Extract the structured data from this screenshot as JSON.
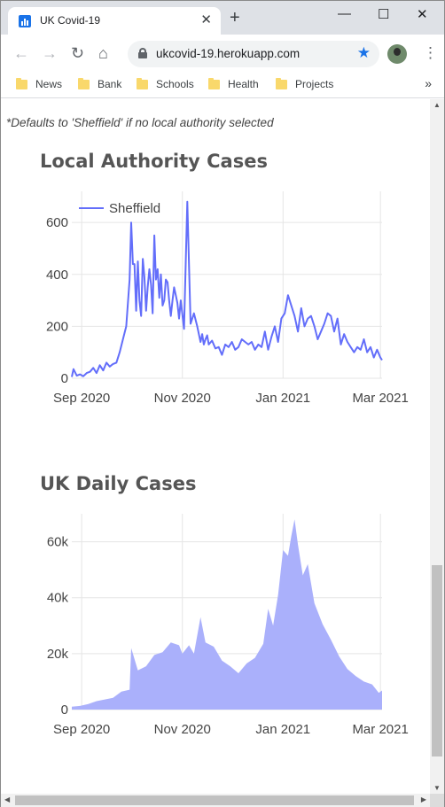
{
  "browser": {
    "tab_title": "UK Covid-19",
    "tab_close": "✕",
    "new_tab": "+",
    "win_minimize": "—",
    "win_maximize": "☐",
    "win_close": "✕",
    "url": "ukcovid-19.herokuapp.com",
    "icons": [
      "back-arrow-icon",
      "forward-arrow-icon",
      "reload-icon",
      "home-icon",
      "lock-icon",
      "star-icon",
      "menu-dots-icon"
    ],
    "bookmarks": [
      "News",
      "Bank",
      "Schools",
      "Health",
      "Projects"
    ],
    "bookmarks_more": "»"
  },
  "page": {
    "note": "*Defaults to 'Sheffield' if no local authority selected",
    "local_title": "Local Authority Cases",
    "uk_title": "UK Daily Cases"
  },
  "colors": {
    "line": "#636efa",
    "area": "#aab0fb",
    "grid": "#e5e5e5"
  },
  "chart_data": [
    {
      "type": "line",
      "title": "Local Authority Cases",
      "xlabel": "",
      "ylabel": "",
      "ylim": [
        0,
        720
      ],
      "yticks": [
        0,
        200,
        400,
        600
      ],
      "ytick_labels": [
        "0",
        "200",
        "400",
        "600"
      ],
      "xticks": [
        "2020-09-01",
        "2020-11-01",
        "2021-01-01",
        "2021-03-01"
      ],
      "xtick_labels": [
        "Sep 2020",
        "Nov 2020",
        "Jan 2021",
        "Mar 2021"
      ],
      "xlim": [
        "2020-08-26",
        "2021-03-02"
      ],
      "legend": "top-left",
      "grid": true,
      "series": [
        {
          "name": "Sheffield",
          "x": [
            "2020-08-26",
            "2020-08-27",
            "2020-08-29",
            "2020-08-31",
            "2020-09-02",
            "2020-09-04",
            "2020-09-06",
            "2020-09-08",
            "2020-09-10",
            "2020-09-12",
            "2020-09-14",
            "2020-09-16",
            "2020-09-18",
            "2020-09-20",
            "2020-09-22",
            "2020-09-24",
            "2020-09-26",
            "2020-09-28",
            "2020-09-30",
            "2020-10-01",
            "2020-10-02",
            "2020-10-03",
            "2020-10-04",
            "2020-10-05",
            "2020-10-06",
            "2020-10-07",
            "2020-10-08",
            "2020-10-09",
            "2020-10-10",
            "2020-10-11",
            "2020-10-12",
            "2020-10-13",
            "2020-10-14",
            "2020-10-15",
            "2020-10-16",
            "2020-10-17",
            "2020-10-18",
            "2020-10-19",
            "2020-10-20",
            "2020-10-21",
            "2020-10-22",
            "2020-10-23",
            "2020-10-24",
            "2020-10-25",
            "2020-10-26",
            "2020-10-27",
            "2020-10-28",
            "2020-10-29",
            "2020-10-30",
            "2020-10-31",
            "2020-11-02",
            "2020-11-04",
            "2020-11-06",
            "2020-11-08",
            "2020-11-10",
            "2020-11-12",
            "2020-11-13",
            "2020-11-14",
            "2020-11-15",
            "2020-11-16",
            "2020-11-17",
            "2020-11-19",
            "2020-11-21",
            "2020-11-23",
            "2020-11-25",
            "2020-11-27",
            "2020-11-29",
            "2020-12-01",
            "2020-12-03",
            "2020-12-05",
            "2020-12-07",
            "2020-12-09",
            "2020-12-11",
            "2020-12-13",
            "2020-12-15",
            "2020-12-17",
            "2020-12-19",
            "2020-12-21",
            "2020-12-23",
            "2020-12-25",
            "2020-12-27",
            "2020-12-29",
            "2020-12-31",
            "2021-01-02",
            "2021-01-04",
            "2021-01-06",
            "2021-01-08",
            "2021-01-10",
            "2021-01-12",
            "2021-01-14",
            "2021-01-16",
            "2021-01-18",
            "2021-01-20",
            "2021-01-22",
            "2021-01-24",
            "2021-01-26",
            "2021-01-28",
            "2021-01-30",
            "2021-02-01",
            "2021-02-03",
            "2021-02-05",
            "2021-02-07",
            "2021-02-09",
            "2021-02-11",
            "2021-02-13",
            "2021-02-15",
            "2021-02-17",
            "2021-02-19",
            "2021-02-21",
            "2021-02-23",
            "2021-02-25",
            "2021-02-27",
            "2021-03-01",
            "2021-03-02"
          ],
          "y": [
            5,
            35,
            10,
            15,
            8,
            20,
            25,
            40,
            20,
            50,
            30,
            60,
            45,
            55,
            60,
            100,
            150,
            200,
            380,
            600,
            440,
            440,
            260,
            450,
            300,
            240,
            460,
            390,
            260,
            350,
            420,
            360,
            250,
            550,
            380,
            420,
            310,
            400,
            280,
            300,
            380,
            370,
            300,
            240,
            300,
            350,
            320,
            290,
            230,
            300,
            190,
            680,
            210,
            250,
            200,
            140,
            170,
            130,
            150,
            165,
            130,
            145,
            115,
            120,
            90,
            130,
            120,
            140,
            110,
            120,
            150,
            140,
            130,
            140,
            110,
            130,
            120,
            180,
            110,
            160,
            200,
            140,
            230,
            250,
            320,
            280,
            240,
            180,
            270,
            200,
            230,
            240,
            200,
            150,
            180,
            210,
            250,
            240,
            180,
            230,
            130,
            170,
            140,
            120,
            100,
            120,
            110,
            150,
            100,
            120,
            80,
            110,
            80,
            70
          ]
        }
      ]
    },
    {
      "type": "area",
      "title": "UK Daily Cases",
      "xlabel": "",
      "ylabel": "",
      "ylim": [
        0,
        70000
      ],
      "yticks": [
        0,
        20000,
        40000,
        60000
      ],
      "ytick_labels": [
        "0",
        "20k",
        "40k",
        "60k"
      ],
      "xticks": [
        "2020-09-01",
        "2020-11-01",
        "2021-01-01",
        "2021-03-01"
      ],
      "xtick_labels": [
        "Sep 2020",
        "Nov 2020",
        "Jan 2021",
        "Mar 2021"
      ],
      "xlim": [
        "2020-08-26",
        "2021-03-02"
      ],
      "grid": true,
      "series": [
        {
          "x": [
            "2020-08-26",
            "2020-08-31",
            "2020-09-05",
            "2020-09-10",
            "2020-09-15",
            "2020-09-20",
            "2020-09-25",
            "2020-09-30",
            "2020-10-01",
            "2020-10-05",
            "2020-10-10",
            "2020-10-15",
            "2020-10-20",
            "2020-10-25",
            "2020-10-30",
            "2020-11-01",
            "2020-11-05",
            "2020-11-08",
            "2020-11-12",
            "2020-11-15",
            "2020-11-20",
            "2020-11-25",
            "2020-11-30",
            "2020-12-05",
            "2020-12-10",
            "2020-12-15",
            "2020-12-20",
            "2020-12-23",
            "2020-12-26",
            "2020-12-29",
            "2021-01-01",
            "2021-01-04",
            "2021-01-06",
            "2021-01-08",
            "2021-01-10",
            "2021-01-13",
            "2021-01-16",
            "2021-01-20",
            "2021-01-25",
            "2021-01-30",
            "2021-02-04",
            "2021-02-09",
            "2021-02-14",
            "2021-02-19",
            "2021-02-24",
            "2021-02-28",
            "2021-03-02"
          ],
          "y": [
            1000,
            1300,
            2000,
            3000,
            3600,
            4200,
            6400,
            7100,
            22000,
            14000,
            15500,
            19500,
            20500,
            24000,
            23000,
            20000,
            23000,
            20000,
            33000,
            24000,
            22500,
            17500,
            15500,
            13000,
            16500,
            18500,
            23500,
            36000,
            30000,
            41000,
            57000,
            55000,
            62000,
            68000,
            59000,
            48000,
            52000,
            38000,
            30500,
            25000,
            19000,
            14500,
            12000,
            10000,
            9000,
            6000,
            6800
          ]
        }
      ]
    }
  ]
}
